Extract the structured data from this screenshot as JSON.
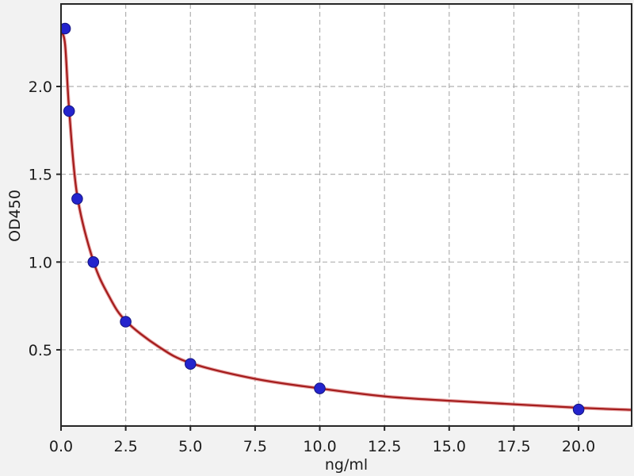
{
  "chart_data": {
    "type": "scatter",
    "title": "",
    "xlabel": "ng/ml",
    "ylabel": "OD450",
    "xlim": [
      0,
      22.05
    ],
    "ylim": [
      0.066,
      2.47
    ],
    "grid": true,
    "grid_style": "dashed",
    "legend_position": "none",
    "x_ticks": {
      "values": [
        0,
        2.5,
        5,
        7.5,
        10,
        12.5,
        15,
        17.5,
        20
      ],
      "labels": [
        "0.0",
        "2.5",
        "5.0",
        "7.5",
        "10.0",
        "12.5",
        "15.0",
        "17.5",
        "20.0"
      ]
    },
    "y_ticks": {
      "values": [
        0.5,
        1.0,
        1.5,
        2.0
      ],
      "labels": [
        "0.5",
        "1.0",
        "1.5",
        "2.0"
      ]
    },
    "series": [
      {
        "name": "standard-points",
        "type": "scatter",
        "marker": "circle",
        "color": "#2424cd",
        "edge_color": "#14147e",
        "x": [
          0.156,
          0.3125,
          0.625,
          1.25,
          2.5,
          5.0,
          10.0,
          20.0
        ],
        "y": [
          2.33,
          1.86,
          1.36,
          1.0,
          0.66,
          0.42,
          0.28,
          0.16
        ]
      },
      {
        "name": "4pl-fit-curve",
        "type": "line",
        "color": "#a51d1d",
        "halo_color": "#d86a6a",
        "x": [
          0,
          0.156,
          0.3125,
          0.625,
          1.25,
          1.875,
          2.5,
          3.75,
          5.0,
          7.5,
          10.0,
          12.5,
          15.0,
          17.5,
          20.0,
          22.05
        ],
        "y": [
          2.31,
          2.24,
          1.87,
          1.38,
          1.005,
          0.8,
          0.665,
          0.52,
          0.425,
          0.335,
          0.28,
          0.235,
          0.21,
          0.19,
          0.17,
          0.158
        ]
      }
    ],
    "colors": {
      "figure_bg": "#f2f2f2",
      "plot_bg": "#ffffff",
      "grid": "#b0b0b0",
      "axis": "#262626",
      "tick_text": "#1c1c1c"
    }
  }
}
